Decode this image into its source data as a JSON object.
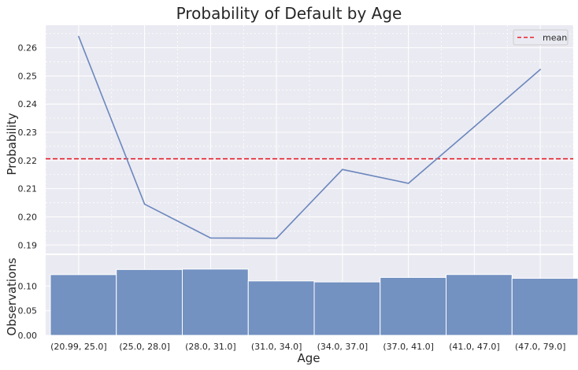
{
  "chart_data": [
    {
      "type": "line",
      "title": "Probability of Default by Age",
      "ylabel": "Probability",
      "ylim": [
        0.187,
        0.268
      ],
      "yticks": [
        0.19,
        0.2,
        0.21,
        0.22,
        0.23,
        0.24,
        0.25,
        0.26
      ],
      "ytick_labels": [
        "0.19",
        "0.20",
        "0.21",
        "0.22",
        "0.23",
        "0.24",
        "0.25",
        "0.26"
      ],
      "categories": [
        "(20.99, 25.0]",
        "(25.0, 28.0]",
        "(28.0, 31.0]",
        "(31.0, 34.0]",
        "(34.0, 37.0]",
        "(37.0, 41.0]",
        "(41.0, 47.0]",
        "(47.0, 79.0]"
      ],
      "values": [
        0.264,
        0.2045,
        0.1925,
        0.1924,
        0.2168,
        0.2119,
        0.232,
        0.2523
      ],
      "mean": 0.2206,
      "legend": {
        "label": "mean",
        "position": "top-right"
      },
      "grid": true,
      "colors": {
        "line": "#6c87bd",
        "mean": "#e8242e",
        "background": "#eaeaf2",
        "grid": "#ffffff"
      }
    },
    {
      "type": "bar",
      "ylabel": "Observations",
      "xlabel": "Age",
      "ylim": [
        0,
        0.163
      ],
      "yticks": [
        0.0,
        0.05,
        0.1
      ],
      "ytick_labels": [
        "0.00",
        "0.05",
        "0.10"
      ],
      "categories": [
        "(20.99, 25.0]",
        "(25.0, 28.0]",
        "(28.0, 31.0]",
        "(31.0, 34.0]",
        "(34.0, 37.0]",
        "(37.0, 41.0]",
        "(41.0, 47.0]",
        "(47.0, 79.0]"
      ],
      "values": [
        0.1233,
        0.1337,
        0.1345,
        0.1105,
        0.1085,
        0.1176,
        0.1235,
        0.1158
      ],
      "grid": true,
      "colors": {
        "bar": "#7391c1",
        "background": "#eaeaf2"
      }
    }
  ]
}
